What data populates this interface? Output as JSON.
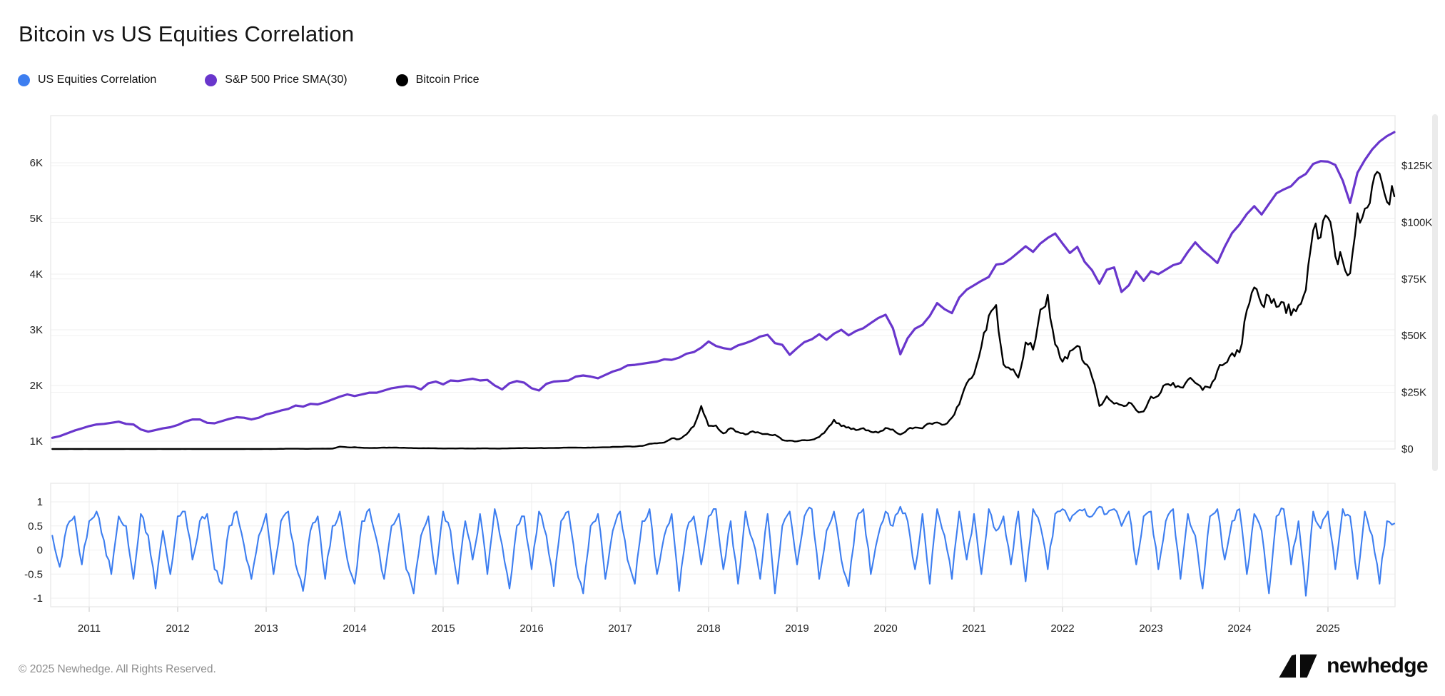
{
  "page": {
    "title": "Bitcoin vs US Equities Correlation",
    "background": "#ffffff"
  },
  "legend": [
    {
      "label": "US Equities Correlation",
      "color": "#3d7ef0"
    },
    {
      "label": "S&P 500 Price SMA(30)",
      "color": "#6936cc"
    },
    {
      "label": "Bitcoin Price",
      "color": "#000000"
    }
  ],
  "footer": {
    "copyright": "© 2025 Newhedge. All Rights Reserved.",
    "brand": "newhedge"
  },
  "chart_data": {
    "type": "line",
    "title": "Bitcoin vs US Equities Correlation",
    "x_start": 2010.5833,
    "x_step": 0.0833333,
    "x_ticks": [
      2011,
      2012,
      2013,
      2014,
      2015,
      2016,
      2017,
      2018,
      2019,
      2020,
      2021,
      2022,
      2023,
      2024,
      2025
    ],
    "grid": true,
    "panels": {
      "price": {
        "left_axis": {
          "ticks": [
            {
              "label": "1K",
              "value": 1
            },
            {
              "label": "2K",
              "value": 2
            },
            {
              "label": "3K",
              "value": 3
            },
            {
              "label": "4K",
              "value": 4
            },
            {
              "label": "5K",
              "value": 5
            },
            {
              "label": "6K",
              "value": 6
            }
          ]
        },
        "right_axis": {
          "ticks": [
            {
              "label": "$0",
              "value": 0
            },
            {
              "label": "$25K",
              "value": 25
            },
            {
              "label": "$50K",
              "value": 50
            },
            {
              "label": "$75K",
              "value": 75
            },
            {
              "label": "$100K",
              "value": 100
            },
            {
              "label": "$125K",
              "value": 125
            }
          ]
        }
      },
      "correlation": {
        "left_axis": {
          "ticks": [
            {
              "label": "1",
              "value": 1
            },
            {
              "label": "0.5",
              "value": 0.5
            },
            {
              "label": "0",
              "value": 0
            },
            {
              "label": "-0.5",
              "value": -0.5
            },
            {
              "label": "-1",
              "value": -1
            }
          ],
          "range": [
            -1,
            1
          ]
        }
      }
    },
    "series": [
      {
        "name": "S&P 500 Price SMA(30)",
        "panel": "price",
        "axis": "left",
        "color": "#6936cc",
        "width": 3.2,
        "units": "K",
        "noise": {
          "rel": 0,
          "abs": 0
        },
        "values": [
          1.06,
          1.09,
          1.14,
          1.19,
          1.23,
          1.27,
          1.3,
          1.31,
          1.33,
          1.35,
          1.31,
          1.3,
          1.21,
          1.17,
          1.2,
          1.23,
          1.25,
          1.29,
          1.35,
          1.39,
          1.39,
          1.33,
          1.32,
          1.36,
          1.4,
          1.43,
          1.42,
          1.39,
          1.42,
          1.48,
          1.51,
          1.55,
          1.58,
          1.64,
          1.62,
          1.67,
          1.66,
          1.7,
          1.75,
          1.8,
          1.84,
          1.81,
          1.84,
          1.87,
          1.87,
          1.91,
          1.95,
          1.97,
          1.99,
          1.98,
          1.93,
          2.04,
          2.07,
          2.02,
          2.09,
          2.08,
          2.1,
          2.12,
          2.09,
          2.1,
          2.0,
          1.93,
          2.04,
          2.08,
          2.05,
          1.95,
          1.91,
          2.03,
          2.07,
          2.08,
          2.09,
          2.16,
          2.18,
          2.16,
          2.13,
          2.19,
          2.25,
          2.29,
          2.36,
          2.37,
          2.39,
          2.41,
          2.43,
          2.47,
          2.46,
          2.5,
          2.57,
          2.6,
          2.68,
          2.79,
          2.71,
          2.67,
          2.65,
          2.72,
          2.76,
          2.81,
          2.88,
          2.91,
          2.76,
          2.73,
          2.55,
          2.67,
          2.78,
          2.83,
          2.92,
          2.82,
          2.93,
          3.0,
          2.9,
          2.98,
          3.03,
          3.12,
          3.21,
          3.27,
          3.03,
          2.56,
          2.85,
          3.02,
          3.09,
          3.25,
          3.48,
          3.37,
          3.3,
          3.58,
          3.72,
          3.8,
          3.88,
          3.95,
          4.17,
          4.19,
          4.28,
          4.39,
          4.5,
          4.4,
          4.55,
          4.65,
          4.73,
          4.55,
          4.38,
          4.49,
          4.22,
          4.07,
          3.83,
          4.08,
          4.12,
          3.68,
          3.8,
          4.05,
          3.88,
          4.05,
          4.0,
          4.08,
          4.16,
          4.2,
          4.4,
          4.57,
          4.43,
          4.32,
          4.2,
          4.49,
          4.74,
          4.89,
          5.08,
          5.22,
          5.07,
          5.26,
          5.45,
          5.52,
          5.58,
          5.72,
          5.8,
          5.98,
          6.03,
          6.02,
          5.96,
          5.68,
          5.28,
          5.82,
          6.05,
          6.24,
          6.38,
          6.48,
          6.55
        ]
      },
      {
        "name": "Bitcoin Price",
        "panel": "price",
        "axis": "right",
        "color": "#000000",
        "width": 2.4,
        "units": "$K",
        "noise": {
          "rel": 0.05,
          "abs": 0.03,
          "min": 0.005
        },
        "values": [
          0.01,
          0.01,
          0.01,
          0.01,
          0.01,
          0.01,
          0.01,
          0.01,
          0.01,
          0.01,
          0.02,
          0.01,
          0.01,
          0.01,
          0.01,
          0.01,
          0.01,
          0.01,
          0.01,
          0.01,
          0.01,
          0.01,
          0.01,
          0.01,
          0.01,
          0.01,
          0.01,
          0.01,
          0.01,
          0.02,
          0.03,
          0.09,
          0.13,
          0.12,
          0.1,
          0.09,
          0.12,
          0.13,
          0.19,
          1.05,
          0.74,
          0.8,
          0.56,
          0.45,
          0.44,
          0.62,
          0.6,
          0.58,
          0.49,
          0.39,
          0.34,
          0.37,
          0.32,
          0.22,
          0.25,
          0.24,
          0.23,
          0.23,
          0.26,
          0.28,
          0.23,
          0.24,
          0.31,
          0.37,
          0.43,
          0.37,
          0.43,
          0.41,
          0.45,
          0.53,
          0.67,
          0.62,
          0.57,
          0.61,
          0.7,
          0.74,
          0.96,
          0.99,
          1.18,
          1.08,
          1.35,
          2.3,
          2.48,
          2.88,
          4.7,
          4.34,
          6.45,
          10.0,
          19.0,
          10.2,
          10.4,
          6.9,
          9.2,
          7.5,
          6.4,
          7.8,
          7.0,
          6.6,
          6.3,
          4.0,
          3.7,
          3.4,
          3.9,
          4.1,
          5.3,
          8.5,
          12.9,
          10.1,
          9.6,
          8.3,
          9.2,
          7.6,
          7.2,
          9.3,
          8.6,
          6.4,
          8.7,
          9.5,
          9.1,
          11.3,
          11.7,
          10.8,
          13.8,
          19.7,
          29.0,
          33.1,
          45.2,
          58.8,
          63.5,
          37.3,
          35.0,
          31.5,
          47.0,
          43.8,
          61.5,
          68.0,
          46.2,
          38.5,
          43.2,
          45.5,
          37.7,
          31.8,
          19.0,
          23.3,
          20.0,
          19.4,
          20.5,
          17.1,
          16.6,
          23.1,
          23.5,
          28.5,
          29.2,
          27.2,
          30.5,
          29.2,
          26.0,
          27.0,
          34.5,
          37.7,
          42.3,
          42.6,
          61.2,
          71.3,
          63.8,
          67.5,
          62.7,
          64.6,
          59.0,
          63.3,
          70.2,
          96.4,
          93.4,
          102.0,
          85.0,
          82.8,
          77.5,
          104.0,
          106.0,
          116.0,
          121.5,
          109.0,
          111.5
        ]
      },
      {
        "name": "US Equities Correlation",
        "panel": "correlation",
        "axis": "left",
        "color": "#3d7ef0",
        "width": 2.1,
        "units": "",
        "noise": {
          "rel": 0,
          "abs": 0.09,
          "clamp": [
            -1,
            0.9
          ]
        },
        "values": [
          0.3,
          -0.35,
          0.5,
          0.7,
          -0.3,
          0.6,
          0.8,
          0.2,
          -0.5,
          0.7,
          0.5,
          -0.6,
          0.75,
          0.3,
          -0.8,
          0.4,
          -0.5,
          0.7,
          0.8,
          -0.2,
          0.6,
          0.75,
          -0.4,
          -0.7,
          0.5,
          0.8,
          0.1,
          -0.6,
          0.3,
          0.75,
          -0.5,
          0.6,
          0.8,
          -0.3,
          -0.85,
          0.4,
          0.7,
          -0.6,
          0.5,
          0.8,
          -0.2,
          -0.7,
          0.6,
          0.85,
          0.2,
          -0.6,
          0.5,
          0.75,
          -0.4,
          -0.9,
          0.3,
          0.7,
          -0.5,
          0.8,
          0.4,
          -0.7,
          0.6,
          -0.2,
          0.75,
          -0.5,
          0.85,
          0.1,
          -0.8,
          0.5,
          0.7,
          -0.4,
          0.8,
          0.3,
          -0.75,
          0.6,
          0.8,
          -0.3,
          -0.9,
          0.5,
          0.75,
          -0.6,
          0.4,
          0.8,
          -0.2,
          -0.7,
          0.6,
          0.85,
          -0.5,
          0.3,
          0.75,
          -0.85,
          0.4,
          0.7,
          -0.3,
          0.7,
          0.85,
          -0.4,
          0.6,
          -0.7,
          0.8,
          0.2,
          -0.6,
          0.75,
          -0.9,
          0.5,
          0.8,
          -0.3,
          0.7,
          0.85,
          -0.6,
          0.4,
          0.8,
          -0.2,
          -0.75,
          0.6,
          0.85,
          -0.5,
          0.3,
          0.8,
          0.5,
          0.9,
          0.6,
          -0.4,
          0.75,
          -0.7,
          0.85,
          0.3,
          -0.6,
          0.8,
          -0.2,
          0.75,
          -0.5,
          0.85,
          0.4,
          0.7,
          -0.3,
          0.8,
          -0.65,
          0.85,
          0.5,
          -0.4,
          0.75,
          0.85,
          0.6,
          0.8,
          0.85,
          0.7,
          0.9,
          0.75,
          0.85,
          0.5,
          0.8,
          -0.3,
          0.7,
          0.8,
          -0.4,
          0.6,
          0.85,
          -0.6,
          0.75,
          0.3,
          -0.8,
          0.7,
          0.85,
          -0.2,
          0.6,
          0.85,
          -0.5,
          0.75,
          0.4,
          -0.9,
          0.7,
          0.85,
          -0.3,
          0.6,
          -0.95,
          0.8,
          0.45,
          0.8,
          -0.4,
          0.85,
          0.7,
          -0.6,
          0.8,
          0.3,
          -0.7,
          0.6,
          0.55
        ]
      }
    ]
  }
}
